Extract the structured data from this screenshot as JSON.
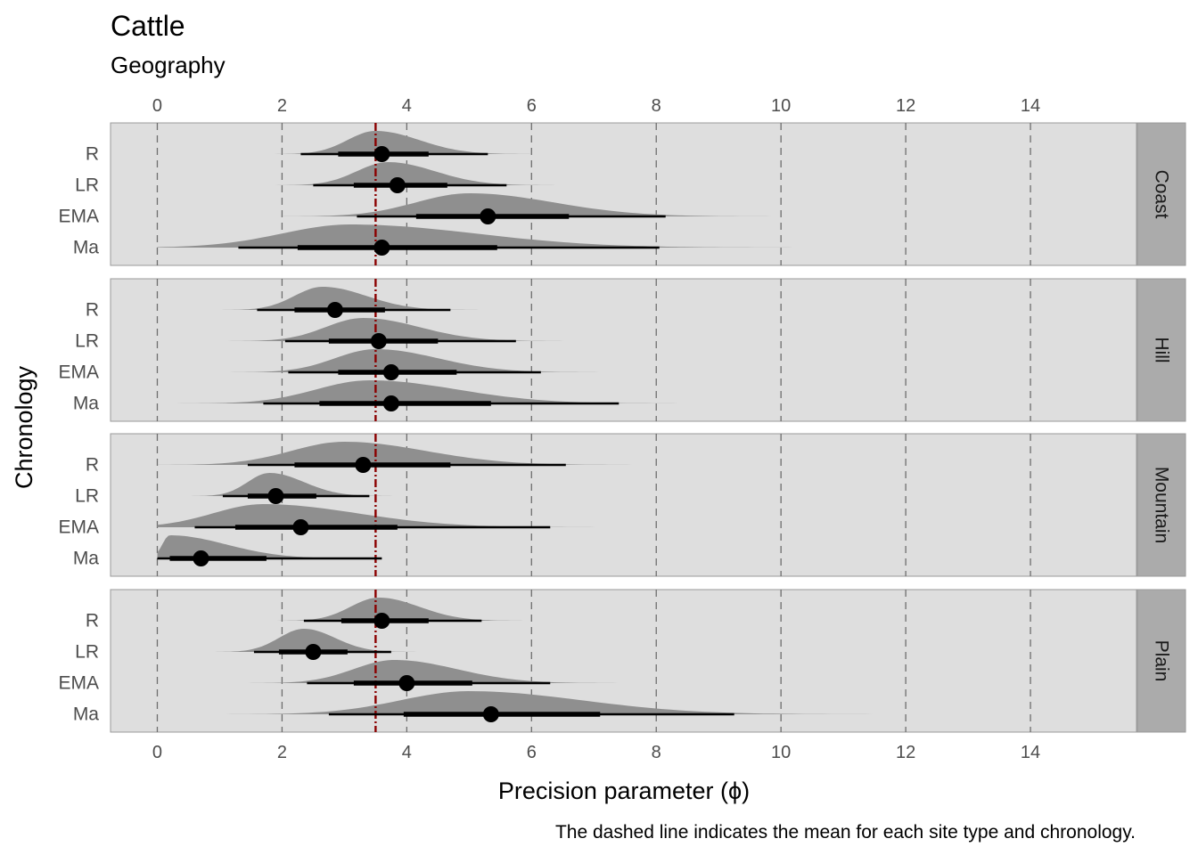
{
  "chart_data": {
    "type": "halfeye",
    "title": "Cattle",
    "subtitle": "Geography",
    "xlabel": "Precision parameter (ϕ)",
    "ylabel": "Chronology",
    "caption": "The dashed line indicates the mean for each site type and chronology.",
    "xlim": [
      -0.75,
      15.7
    ],
    "x_ticks": [
      0,
      2,
      4,
      6,
      8,
      10,
      12,
      14
    ],
    "reference_line": 3.5,
    "categories": [
      "R",
      "LR",
      "EMA",
      "Ma"
    ],
    "colors": {
      "panel_bg": "#dedede",
      "strip_bg": "#ababab",
      "density": "#8f8f8f",
      "reference": "#8b0000",
      "point": "#000000",
      "grid": "#6e6e6e"
    },
    "panels": [
      {
        "name": "Coast",
        "rows": [
          {
            "label": "R",
            "median": 3.6,
            "q66": [
              2.9,
              4.35
            ],
            "q95": [
              2.3,
              5.3
            ],
            "mode": 3.5,
            "sd_lo": 0.45,
            "sd_hi": 0.7
          },
          {
            "label": "LR",
            "median": 3.85,
            "q66": [
              3.15,
              4.65
            ],
            "q95": [
              2.5,
              5.6
            ],
            "mode": 3.7,
            "sd_lo": 0.5,
            "sd_hi": 0.75
          },
          {
            "label": "EMA",
            "median": 5.3,
            "q66": [
              4.15,
              6.6
            ],
            "q95": [
              3.2,
              8.15
            ],
            "mode": 5.0,
            "sd_lo": 0.85,
            "sd_hi": 1.35
          },
          {
            "label": "Ma",
            "median": 3.6,
            "q66": [
              2.25,
              5.45
            ],
            "q95": [
              1.3,
              8.05
            ],
            "mode": 3.1,
            "sd_lo": 1.1,
            "sd_hi": 2.0
          }
        ]
      },
      {
        "name": "Hill",
        "rows": [
          {
            "label": "R",
            "median": 2.85,
            "q66": [
              2.2,
              3.65
            ],
            "q95": [
              1.6,
              4.7
            ],
            "mode": 2.65,
            "sd_lo": 0.45,
            "sd_hi": 0.7
          },
          {
            "label": "LR",
            "median": 3.55,
            "q66": [
              2.75,
              4.5
            ],
            "q95": [
              2.05,
              5.75
            ],
            "mode": 3.3,
            "sd_lo": 0.6,
            "sd_hi": 0.9
          },
          {
            "label": "EMA",
            "median": 3.75,
            "q66": [
              2.9,
              4.8
            ],
            "q95": [
              2.1,
              6.15
            ],
            "mode": 3.5,
            "sd_lo": 0.65,
            "sd_hi": 1.0
          },
          {
            "label": "Ma",
            "median": 3.75,
            "q66": [
              2.6,
              5.35
            ],
            "q95": [
              1.7,
              7.4
            ],
            "mode": 3.4,
            "sd_lo": 0.85,
            "sd_hi": 1.4
          }
        ]
      },
      {
        "name": "Mountain",
        "rows": [
          {
            "label": "R",
            "median": 3.3,
            "q66": [
              2.2,
              4.7
            ],
            "q95": [
              1.45,
              6.55
            ],
            "mode": 3.0,
            "sd_lo": 0.85,
            "sd_hi": 1.3
          },
          {
            "label": "LR",
            "median": 1.9,
            "q66": [
              1.45,
              2.55
            ],
            "q95": [
              1.05,
              3.4
            ],
            "mode": 1.8,
            "sd_lo": 0.35,
            "sd_hi": 0.55
          },
          {
            "label": "EMA",
            "median": 2.3,
            "q66": [
              1.25,
              3.85
            ],
            "q95": [
              0.6,
              6.3
            ],
            "mode": 1.7,
            "sd_lo": 0.8,
            "sd_hi": 1.5
          },
          {
            "label": "Ma",
            "median": 0.7,
            "q66": [
              0.2,
              1.75
            ],
            "q95": [
              0.0,
              3.6
            ],
            "mode": 0.2,
            "sd_lo": 0.12,
            "sd_hi": 0.9
          }
        ]
      },
      {
        "name": "Plain",
        "rows": [
          {
            "label": "R",
            "median": 3.6,
            "q66": [
              2.95,
              4.35
            ],
            "q95": [
              2.35,
              5.2
            ],
            "mode": 3.55,
            "sd_lo": 0.45,
            "sd_hi": 0.65
          },
          {
            "label": "LR",
            "median": 2.5,
            "q66": [
              1.95,
              3.05
            ],
            "q95": [
              1.55,
              3.75
            ],
            "mode": 2.35,
            "sd_lo": 0.4,
            "sd_hi": 0.5
          },
          {
            "label": "EMA",
            "median": 4.0,
            "q66": [
              3.15,
              5.05
            ],
            "q95": [
              2.4,
              6.3
            ],
            "mode": 3.8,
            "sd_lo": 0.65,
            "sd_hi": 1.0
          },
          {
            "label": "Ma",
            "median": 5.35,
            "q66": [
              3.95,
              7.1
            ],
            "q95": [
              2.75,
              9.25
            ],
            "mode": 5.0,
            "sd_lo": 1.1,
            "sd_hi": 1.8
          }
        ]
      }
    ]
  }
}
